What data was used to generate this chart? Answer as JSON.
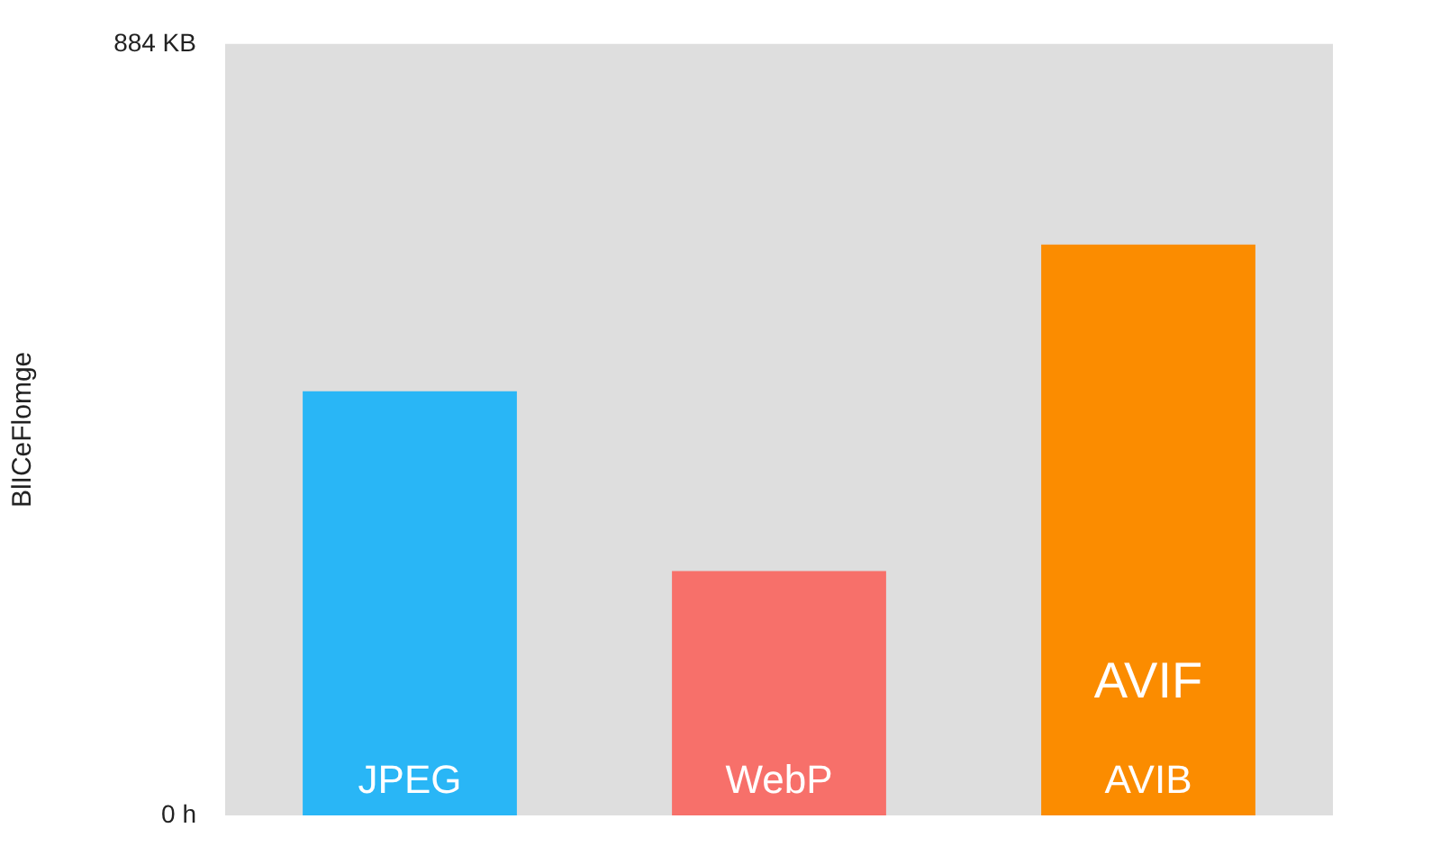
{
  "chart_data": {
    "type": "bar",
    "ylabel": "BlICeFlomge",
    "categories": [
      "JPEG",
      "WebP",
      "AVIB"
    ],
    "values": [
      486,
      280,
      654
    ],
    "colors": [
      "#29b6f6",
      "#f7706a",
      "#fb8c00"
    ],
    "ylim": [
      0,
      884
    ],
    "yticks": [
      {
        "value": 0,
        "label": "0 h"
      },
      {
        "value": 884,
        "label": "884 KB"
      }
    ],
    "grid": false,
    "legend": false,
    "annotations": [
      "AVIF"
    ]
  }
}
